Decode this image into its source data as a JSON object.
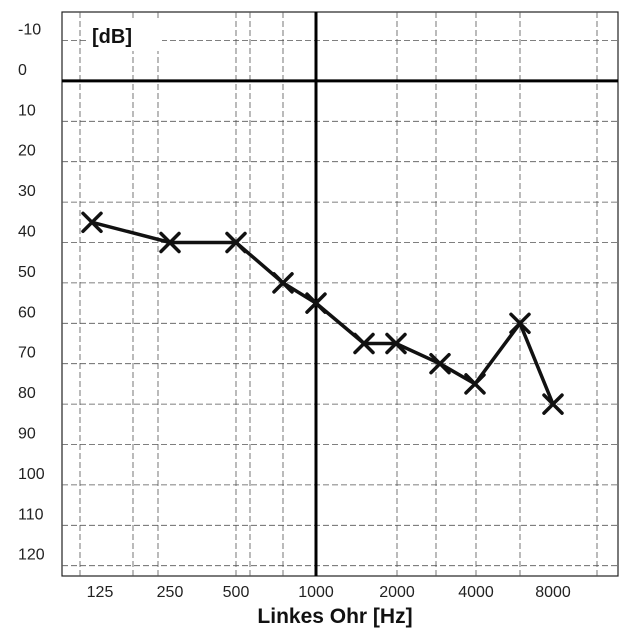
{
  "chart_data": {
    "type": "line",
    "unit_label": "[dB]",
    "xlabel": "Linkes Ohr  [Hz]",
    "x_ticks": [
      "125",
      "250",
      "500",
      "1000",
      "2000",
      "4000",
      "8000"
    ],
    "y_ticks": [
      "-10",
      "0",
      "10",
      "20",
      "30",
      "40",
      "50",
      "60",
      "70",
      "80",
      "90",
      "100",
      "110",
      "120"
    ],
    "ylim": [
      -20,
      120
    ],
    "y_inverted": true,
    "x_scale": "log2",
    "grid": true,
    "series": [
      {
        "x": [
          125,
          250,
          500,
          750,
          1000,
          1500,
          2000,
          3000,
          4000,
          6000,
          8000
        ],
        "y": [
          35,
          40,
          40,
          50,
          55,
          65,
          65,
          70,
          75,
          60,
          80
        ]
      }
    ]
  }
}
